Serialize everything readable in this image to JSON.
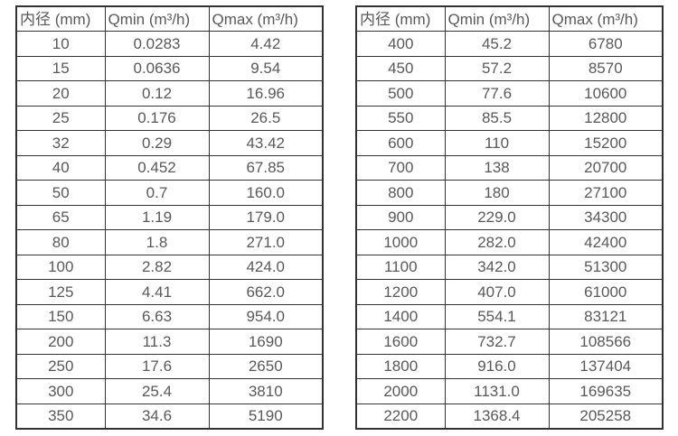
{
  "colors": {
    "background": "#ffffff",
    "border": "#333333",
    "text": "#595959"
  },
  "tables": [
    {
      "name": "small-diameter-flow-table",
      "headers": [
        "内径 (mm)",
        "Qmin (m³/h)",
        "Qmax (m³/h)"
      ],
      "rows": [
        [
          "10",
          "0.0283",
          "4.42"
        ],
        [
          "15",
          "0.0636",
          "9.54"
        ],
        [
          "20",
          "0.12",
          "16.96"
        ],
        [
          "25",
          "0.176",
          "26.5"
        ],
        [
          "32",
          "0.29",
          "43.42"
        ],
        [
          "40",
          "0.452",
          "67.85"
        ],
        [
          "50",
          "0.7",
          "160.0"
        ],
        [
          "65",
          "1.19",
          "179.0"
        ],
        [
          "80",
          "1.8",
          "271.0"
        ],
        [
          "100",
          "2.82",
          "424.0"
        ],
        [
          "125",
          "4.41",
          "662.0"
        ],
        [
          "150",
          "6.63",
          "954.0"
        ],
        [
          "200",
          "11.3",
          "1690"
        ],
        [
          "250",
          "17.6",
          "2650"
        ],
        [
          "300",
          "25.4",
          "3810"
        ],
        [
          "350",
          "34.6",
          "5190"
        ]
      ]
    },
    {
      "name": "large-diameter-flow-table",
      "headers": [
        "内径 (mm)",
        "Qmin (m³/h)",
        "Qmax (m³/h)"
      ],
      "rows": [
        [
          "400",
          "45.2",
          "6780"
        ],
        [
          "450",
          "57.2",
          "8570"
        ],
        [
          "500",
          "77.6",
          "10600"
        ],
        [
          "550",
          "85.5",
          "12800"
        ],
        [
          "600",
          "110",
          "15200"
        ],
        [
          "700",
          "138",
          "20700"
        ],
        [
          "800",
          "180",
          "27100"
        ],
        [
          "900",
          "229.0",
          "34300"
        ],
        [
          "1000",
          "282.0",
          "42400"
        ],
        [
          "1100",
          "342.0",
          "51300"
        ],
        [
          "1200",
          "407.0",
          "61000"
        ],
        [
          "1400",
          "554.1",
          "83121"
        ],
        [
          "1600",
          "732.7",
          "108566"
        ],
        [
          "1800",
          "916.0",
          "137404"
        ],
        [
          "2000",
          "1131.0",
          "169635"
        ],
        [
          "2200",
          "1368.4",
          "205258"
        ]
      ]
    }
  ]
}
